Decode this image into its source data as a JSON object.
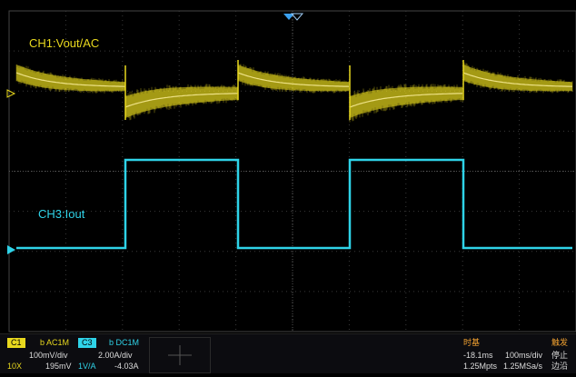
{
  "channels": {
    "ch1": {
      "trace_label": "CH1:Vout/AC",
      "badge": "C1",
      "coupling": "b AC1M",
      "scale": "100mV/div",
      "probe": "10X",
      "offset": "195mV",
      "color": "#e8d81e"
    },
    "ch3": {
      "trace_label": "CH3:Iout",
      "badge": "C3",
      "coupling": "b DC1M",
      "scale": "2.00A/div",
      "probe": "1V/A",
      "offset": "-4.03A",
      "color": "#2fd3e8"
    }
  },
  "timebase": {
    "title": "时基",
    "delay": "-18.1ms",
    "scale": "100ms/div",
    "memory": "1.25Mpts",
    "sample_rate": "1.25MSa/s"
  },
  "trigger": {
    "title": "触发",
    "state": "停止",
    "type": "边沿"
  },
  "colors": {
    "background": "#000000",
    "grid": "#3a3a3a",
    "ch1": "#e8d81e",
    "ch3": "#2fd3e8",
    "trigger_marker": "#3aa0f0"
  },
  "icons": {
    "ch1_ground_marker": "right-arrow-marker",
    "ch3_ground_marker": "right-arrow-marker",
    "trigger_position": "down-triangle-marker",
    "aux_window": "crosshair-icon"
  }
}
